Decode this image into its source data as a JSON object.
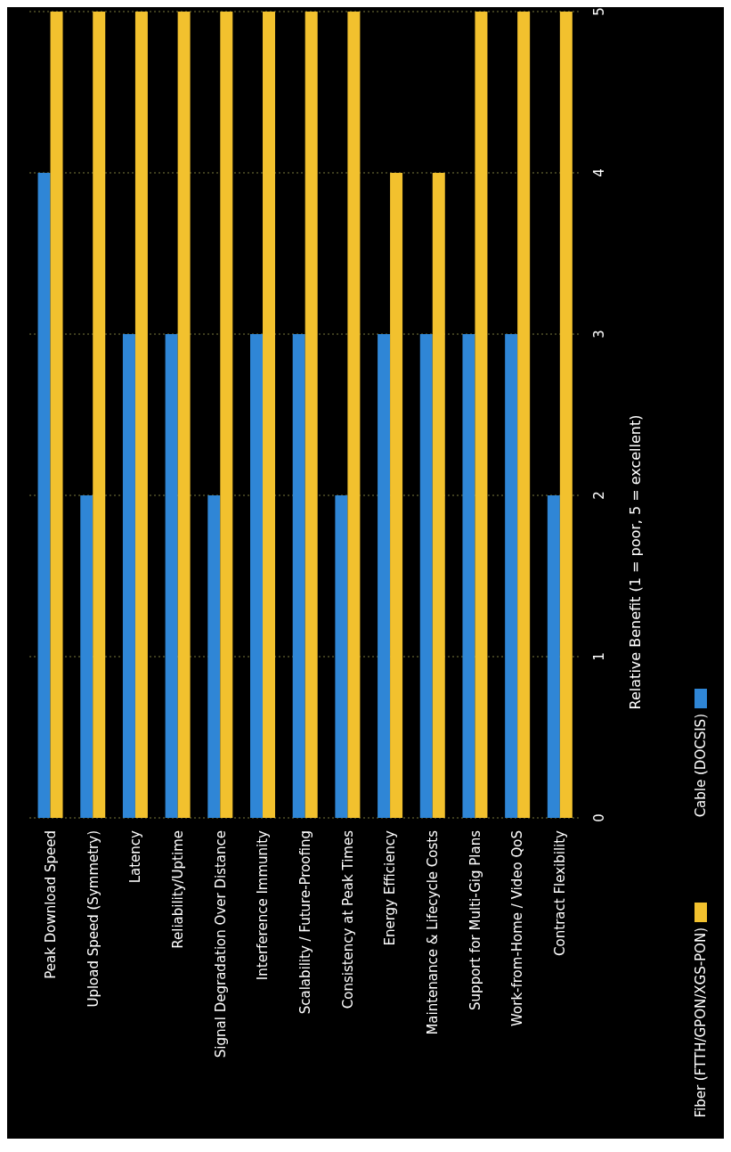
{
  "chart_data": {
    "type": "bar",
    "ylabel": "Relative Benefit (1 = poor, 5 = excellent)",
    "categories": [
      "Peak Download Speed",
      "Upload Speed (Symmetry)",
      "Latency",
      "Reliability/Uptime",
      "Signal Degradation Over Distance",
      "Interference Immunity",
      "Scalability / Future-Proofing",
      "Consistency at Peak Times",
      "Energy Efficiency",
      "Maintenance & Lifecycle Costs",
      "Support for Multi-Gig Plans",
      "Work-from-Home / Video QoS",
      "Contract Flexibility"
    ],
    "series": [
      {
        "name": "Fiber (FTTH/GPON/XGS-PON)",
        "color": "#f2c12e",
        "values": [
          5,
          5,
          5,
          5,
          5,
          5,
          5,
          5,
          4,
          4,
          5,
          5,
          5
        ]
      },
      {
        "name": "Cable (DOCSIS)",
        "color": "#2f86d6",
        "values": [
          4,
          2,
          3,
          3,
          2,
          3,
          3,
          2,
          3,
          3,
          3,
          3,
          2
        ]
      }
    ],
    "ylim": [
      0,
      5
    ],
    "yticks": [
      0,
      1,
      2,
      3,
      4,
      5
    ],
    "grid": "y",
    "legend": "right"
  }
}
